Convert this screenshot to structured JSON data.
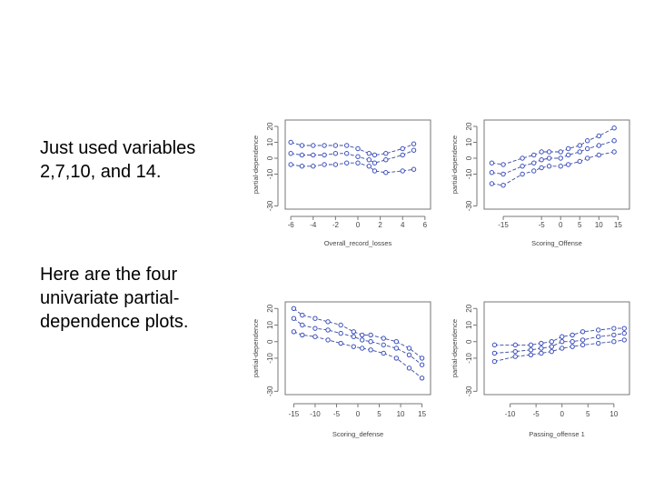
{
  "text": {
    "intro": [
      "Just used variables",
      "2,7,10, and 14."
    ],
    "desc": [
      "Here are the four",
      "univariate partial-",
      "dependence plots."
    ]
  },
  "chart_data": [
    {
      "type": "line",
      "xlabel": "Overall_record_losses",
      "ylabel": "partial-dependence",
      "xticks": [
        "-6",
        "-4",
        "-2",
        "0",
        "2",
        "4",
        "6"
      ],
      "xtick_values": [
        -6,
        -4,
        -2,
        0,
        2,
        4,
        6
      ],
      "yticks": [
        "-30",
        "-10",
        "0",
        "10",
        "20"
      ],
      "ytick_values": [
        -30,
        -10,
        0,
        10,
        20
      ],
      "xlim": [
        -6.5,
        6.5
      ],
      "ylim": [
        -32,
        24
      ],
      "x": [
        -6,
        -5,
        -4,
        -3,
        -2,
        -1,
        0,
        1,
        1.5,
        2.5,
        4,
        5
      ],
      "series": [
        {
          "name": "upper",
          "values": [
            10,
            8,
            8,
            8,
            8,
            8,
            6,
            3,
            2,
            3,
            6,
            9
          ]
        },
        {
          "name": "middle",
          "values": [
            3,
            2,
            2,
            2,
            3,
            3,
            1,
            -1,
            -3,
            -1,
            2,
            5
          ]
        },
        {
          "name": "lower",
          "values": [
            -4,
            -5,
            -5,
            -4,
            -4,
            -3,
            -3,
            -5,
            -8,
            -9,
            -8,
            -7
          ]
        }
      ]
    },
    {
      "type": "line",
      "xlabel": "Scoring_Offense",
      "ylabel": "partial-dependence",
      "xticks": [
        "-15",
        "-5",
        "0",
        "5",
        "10",
        "15"
      ],
      "xtick_values": [
        -15,
        -5,
        0,
        5,
        10,
        15
      ],
      "yticks": [
        "-30",
        "-10",
        "0",
        "10",
        "20"
      ],
      "ytick_values": [
        -30,
        -10,
        0,
        10,
        20
      ],
      "xlim": [
        -20,
        18
      ],
      "ylim": [
        -32,
        24
      ],
      "x": [
        -18,
        -15,
        -10,
        -7,
        -5,
        -3,
        0,
        2,
        5,
        7,
        10,
        14
      ],
      "series": [
        {
          "name": "upper",
          "values": [
            -3,
            -4,
            0,
            2,
            4,
            4,
            4,
            6,
            8,
            11,
            14,
            19
          ]
        },
        {
          "name": "middle",
          "values": [
            -9,
            -10,
            -5,
            -3,
            -1,
            0,
            0,
            2,
            4,
            6,
            8,
            11
          ]
        },
        {
          "name": "lower",
          "values": [
            -16,
            -17,
            -10,
            -8,
            -6,
            -5,
            -5,
            -4,
            -2,
            0,
            2,
            4
          ]
        }
      ]
    },
    {
      "type": "line",
      "xlabel": "Scoring_defense",
      "ylabel": "partial-dependence",
      "xticks": [
        "-15",
        "-10",
        "-5",
        "0",
        "5",
        "10",
        "15"
      ],
      "xtick_values": [
        -15,
        -10,
        -5,
        0,
        5,
        10,
        15
      ],
      "yticks": [
        "-30",
        "-10",
        "0",
        "10",
        "20"
      ],
      "ytick_values": [
        -30,
        -10,
        0,
        10,
        20
      ],
      "xlim": [
        -17,
        17
      ],
      "ylim": [
        -32,
        24
      ],
      "x": [
        -15,
        -13,
        -10,
        -7,
        -4,
        -1,
        1,
        3,
        6,
        9,
        12,
        15
      ],
      "series": [
        {
          "name": "upper",
          "values": [
            20,
            16,
            14,
            12,
            10,
            6,
            4,
            4,
            2,
            0,
            -4,
            -10
          ]
        },
        {
          "name": "middle",
          "values": [
            14,
            10,
            8,
            7,
            5,
            3,
            1,
            0,
            -2,
            -4,
            -8,
            -14
          ]
        },
        {
          "name": "lower",
          "values": [
            6,
            4,
            3,
            1,
            -1,
            -3,
            -4,
            -5,
            -7,
            -10,
            -16,
            -22
          ]
        }
      ]
    },
    {
      "type": "line",
      "xlabel": "Passing_offense 1",
      "ylabel": "partial-dependence",
      "xticks": [
        "-10",
        "-5",
        "0",
        "5",
        "10"
      ],
      "xtick_values": [
        -10,
        -5,
        0,
        5,
        10
      ],
      "yticks": [
        "-30",
        "-10",
        "0",
        "10",
        "20"
      ],
      "ytick_values": [
        -30,
        -10,
        0,
        10,
        20
      ],
      "xlim": [
        -15,
        13
      ],
      "ylim": [
        -32,
        24
      ],
      "x": [
        -13,
        -9,
        -6,
        -4,
        -2,
        0,
        2,
        4,
        7,
        10,
        12
      ],
      "series": [
        {
          "name": "upper",
          "values": [
            -2,
            -2,
            -2,
            -1,
            0,
            3,
            4,
            6,
            7,
            8,
            8
          ]
        },
        {
          "name": "middle",
          "values": [
            -7,
            -6,
            -5,
            -4,
            -3,
            0,
            0,
            1,
            3,
            4,
            5
          ]
        },
        {
          "name": "lower",
          "values": [
            -12,
            -9,
            -8,
            -7,
            -6,
            -4,
            -3,
            -2,
            -1,
            0,
            1
          ]
        }
      ]
    }
  ]
}
